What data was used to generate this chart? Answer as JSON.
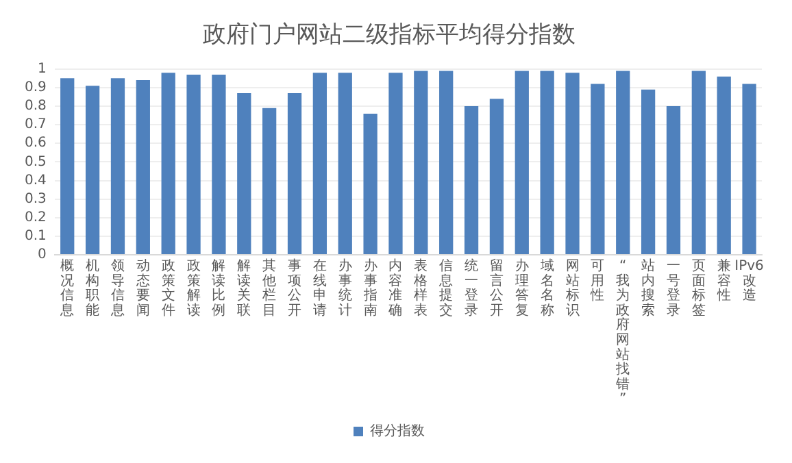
{
  "chart_data": {
    "type": "bar",
    "title": "政府门户网站二级指标平均得分指数",
    "categories": [
      "概况信息",
      "机构职能",
      "领导信息",
      "动态要闻",
      "政策文件",
      "政策解读",
      "解读比例",
      "解读关联",
      "其他栏目",
      "事项公开",
      "在线申请",
      "办事统计",
      "办事指南",
      "内容准确",
      "表格样表",
      "信息提交",
      "统一登录",
      "留言公开",
      "办理答复",
      "域名名称",
      "网站标识",
      "可用性",
      "“我为政府网站找错”",
      "站内搜索",
      "一号登录",
      "页面标签",
      "兼容性",
      "IPv6改造"
    ],
    "series": [
      {
        "name": "得分指数",
        "color": "#4f81bd",
        "values": [
          0.95,
          0.91,
          0.95,
          0.94,
          0.98,
          0.97,
          0.97,
          0.87,
          0.79,
          0.87,
          0.98,
          0.98,
          0.76,
          0.98,
          0.99,
          0.99,
          0.8,
          0.84,
          0.99,
          0.99,
          0.98,
          0.92,
          0.99,
          0.89,
          0.8,
          0.99,
          0.96,
          0.92
        ]
      }
    ],
    "ylim": [
      0,
      1
    ],
    "yticks": [
      0,
      0.1,
      0.2,
      0.3,
      0.4,
      0.5,
      0.6,
      0.7,
      0.8,
      0.9,
      1
    ],
    "grid": "y",
    "legend": "bottom"
  }
}
